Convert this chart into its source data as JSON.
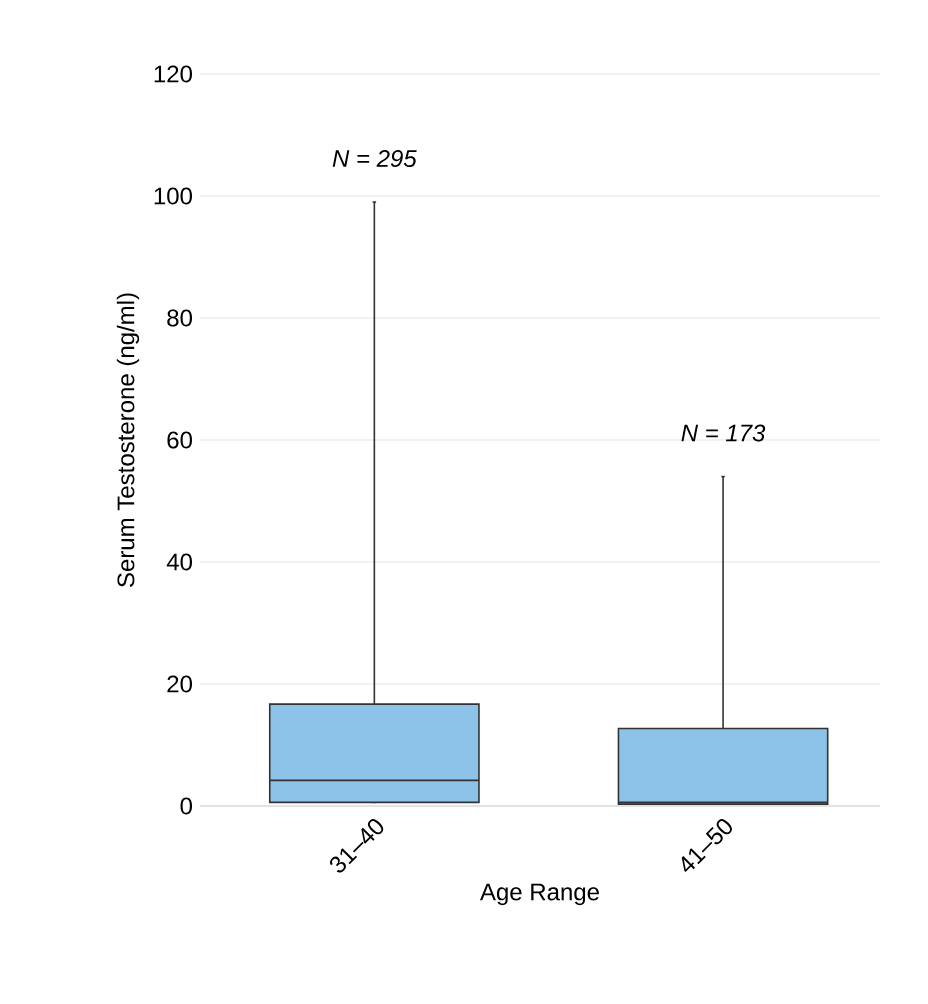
{
  "chart_data": {
    "type": "box",
    "xlabel": "Age Range",
    "ylabel": "Serum Testosterone (ng/ml)",
    "categories": [
      "31–40",
      "41–50"
    ],
    "boxes": [
      {
        "low": 0.6,
        "q1": 0.6,
        "median": 4.2,
        "q3": 16.7,
        "high": 99
      },
      {
        "low": 0.3,
        "q1": 0.3,
        "median": 0.6,
        "q3": 12.7,
        "high": 54
      }
    ],
    "color": "#8dc3e8",
    "ylim": [
      0,
      120
    ],
    "yticks": [
      0,
      20,
      40,
      60,
      80,
      100,
      120
    ],
    "grid": "y",
    "annotations": [
      "N = 295",
      "N = 173"
    ]
  }
}
